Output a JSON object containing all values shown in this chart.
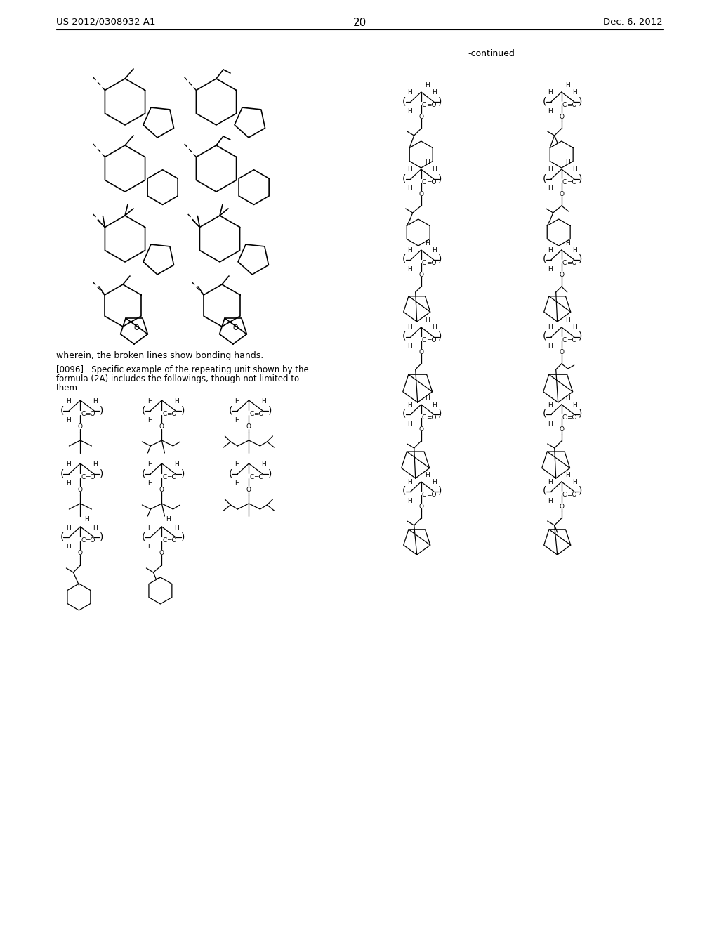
{
  "background_color": "#ffffff",
  "page_number": "20",
  "header_left": "US 2012/0308932 A1",
  "header_right": "Dec. 6, 2012",
  "continued_label": "-continued",
  "text1": "wherein, the broken lines show bonding hands.",
  "text2a": "[0096]   Specific example of the repeating unit shown by the",
  "text2b": "formula (2A) includes the followings, though not limited to",
  "text2c": "them."
}
